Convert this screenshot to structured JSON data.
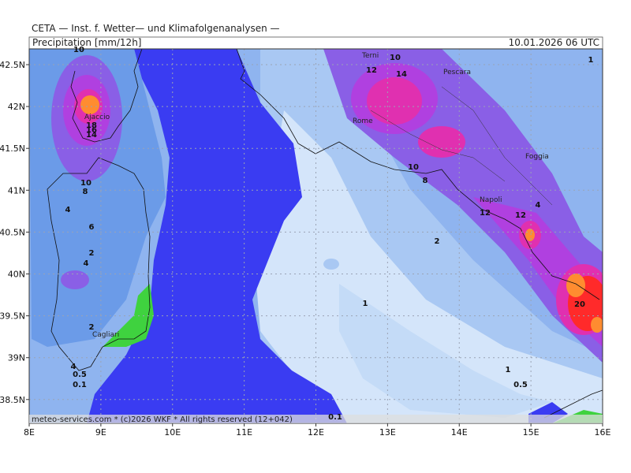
{
  "header": {
    "institute": "CETA — Inst. f. Wetter— und Klimafolgenanalysen —",
    "field": "Precipitation [mm/12h]",
    "valid_time": "10.01.2026 06 UTC"
  },
  "axes": {
    "longitude_labels": [
      "8E",
      "9E",
      "10E",
      "11E",
      "12E",
      "13E",
      "14E",
      "15E",
      "16E"
    ],
    "latitude_labels": [
      "42.5N",
      "42N",
      "41.5N",
      "41N",
      "40.5N",
      "40N",
      "39.5N",
      "39N",
      "38.5N"
    ]
  },
  "cities": [
    "Terni",
    "Pescara",
    "Rome",
    "Ajaccio",
    "Foggia",
    "Napoli",
    "Cagliari"
  ],
  "contour_labels": [
    "10",
    "12",
    "10",
    "14",
    "18",
    "16",
    "14",
    "10",
    "8",
    "4",
    "6",
    "2",
    "4",
    "10",
    "8",
    "12",
    "12",
    "4",
    "2",
    "1",
    "20",
    "2",
    "1",
    "1",
    "0.5",
    "4",
    "0.5",
    "0.1",
    "0.1"
  ],
  "footer": "meteo-services.com * (c)2026 WKF * All rights reserved (12+042)"
}
